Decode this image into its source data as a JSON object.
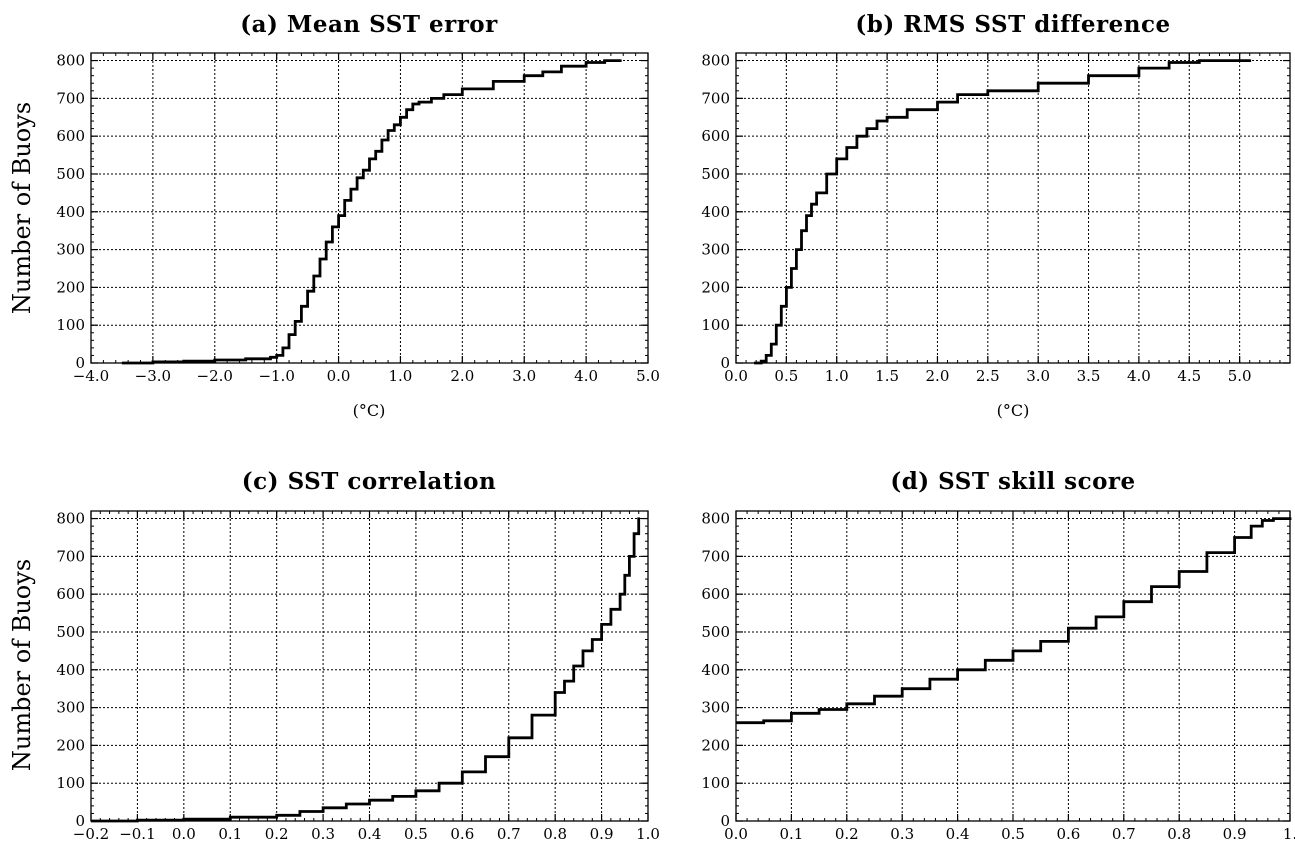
{
  "figure": {
    "y_axis_label": "Number of Buoys",
    "unit_label": "(°C)"
  },
  "chart_data": [
    {
      "type": "line",
      "title": "(a) Mean SST error",
      "xlabel": "(°C)",
      "ylabel": "Number of Buoys",
      "xlim": [
        -4.0,
        5.0
      ],
      "ylim": [
        0,
        820
      ],
      "x_ticks": [
        "−4.0",
        "−3.0",
        "−2.0",
        "−1.0",
        "0.0",
        "1.0",
        "2.0",
        "3.0",
        "4.0",
        "5.0"
      ],
      "y_ticks": [
        "0",
        "100",
        "200",
        "300",
        "400",
        "500",
        "600",
        "700",
        "800"
      ],
      "grid": true,
      "step": true,
      "series": [
        {
          "x": [
            -3.5,
            -3.0,
            -2.5,
            -2.0,
            -1.5,
            -1.1,
            -1.0,
            -0.9,
            -0.8,
            -0.7,
            -0.6,
            -0.5,
            -0.4,
            -0.3,
            -0.2,
            -0.1,
            0.0,
            0.1,
            0.2,
            0.3,
            0.4,
            0.5,
            0.6,
            0.7,
            0.8,
            0.9,
            1.0,
            1.1,
            1.2,
            1.3,
            1.5,
            1.7,
            2.0,
            2.5,
            3.0,
            3.3,
            3.6,
            4.0,
            4.3,
            4.55
          ],
          "y": [
            0,
            3,
            5,
            8,
            11,
            15,
            20,
            40,
            75,
            110,
            150,
            190,
            230,
            275,
            320,
            360,
            390,
            430,
            460,
            490,
            510,
            540,
            560,
            590,
            615,
            630,
            650,
            670,
            685,
            690,
            700,
            710,
            725,
            745,
            760,
            770,
            785,
            795,
            800,
            803
          ]
        }
      ]
    },
    {
      "type": "line",
      "title": "(b) RMS SST difference",
      "xlabel": "(°C)",
      "ylabel": "",
      "xlim": [
        0.0,
        5.5
      ],
      "ylim": [
        0,
        820
      ],
      "x_ticks": [
        "0.0",
        "0.5",
        "1.0",
        "1.5",
        "2.0",
        "2.5",
        "3.0",
        "3.5",
        "4.0",
        "4.5",
        "5.0"
      ],
      "y_ticks": [
        "0",
        "100",
        "200",
        "300",
        "400",
        "500",
        "600",
        "700",
        "800"
      ],
      "grid": true,
      "step": true,
      "series": [
        {
          "x": [
            0.18,
            0.25,
            0.3,
            0.35,
            0.4,
            0.45,
            0.5,
            0.55,
            0.6,
            0.65,
            0.7,
            0.75,
            0.8,
            0.9,
            1.0,
            1.1,
            1.2,
            1.3,
            1.4,
            1.5,
            1.7,
            2.0,
            2.2,
            2.5,
            3.0,
            3.5,
            4.0,
            4.3,
            4.6,
            5.1
          ],
          "y": [
            0,
            5,
            20,
            50,
            100,
            150,
            200,
            250,
            300,
            350,
            390,
            420,
            450,
            500,
            540,
            570,
            600,
            620,
            640,
            650,
            670,
            690,
            710,
            720,
            740,
            760,
            780,
            795,
            800,
            803
          ]
        }
      ]
    },
    {
      "type": "line",
      "title": "(c) SST correlation",
      "xlabel": "",
      "ylabel": "Number of Buoys",
      "xlim": [
        -0.2,
        1.0
      ],
      "ylim": [
        0,
        820
      ],
      "x_ticks": [
        "−0.2",
        "−0.1",
        "0.0",
        "0.1",
        "0.2",
        "0.3",
        "0.4",
        "0.5",
        "0.6",
        "0.7",
        "0.8",
        "0.9",
        "1.0"
      ],
      "y_ticks": [
        "0",
        "100",
        "200",
        "300",
        "400",
        "500",
        "600",
        "700",
        "800"
      ],
      "grid": true,
      "step": true,
      "series": [
        {
          "x": [
            -0.2,
            -0.1,
            0.0,
            0.1,
            0.2,
            0.25,
            0.3,
            0.35,
            0.4,
            0.45,
            0.5,
            0.55,
            0.6,
            0.65,
            0.7,
            0.75,
            0.8,
            0.82,
            0.84,
            0.86,
            0.88,
            0.9,
            0.92,
            0.94,
            0.95,
            0.96,
            0.97,
            0.98
          ],
          "y": [
            0,
            2,
            5,
            10,
            15,
            25,
            35,
            45,
            55,
            65,
            80,
            100,
            130,
            170,
            220,
            280,
            340,
            370,
            410,
            450,
            480,
            520,
            560,
            600,
            650,
            700,
            760,
            803
          ]
        }
      ]
    },
    {
      "type": "line",
      "title": "(d) SST skill score",
      "xlabel": "",
      "ylabel": "",
      "xlim": [
        0.0,
        1.0
      ],
      "ylim": [
        0,
        820
      ],
      "x_ticks": [
        "0.0",
        "0.1",
        "0.2",
        "0.3",
        "0.4",
        "0.5",
        "0.6",
        "0.7",
        "0.8",
        "0.9",
        "1."
      ],
      "y_ticks": [
        "0",
        "100",
        "200",
        "300",
        "400",
        "500",
        "600",
        "700",
        "800"
      ],
      "grid": true,
      "step": true,
      "series": [
        {
          "x": [
            0.0,
            0.05,
            0.1,
            0.15,
            0.2,
            0.25,
            0.3,
            0.35,
            0.4,
            0.45,
            0.5,
            0.55,
            0.6,
            0.65,
            0.7,
            0.75,
            0.8,
            0.85,
            0.9,
            0.93,
            0.95,
            0.97,
            1.0
          ],
          "y": [
            260,
            265,
            285,
            295,
            310,
            330,
            350,
            375,
            400,
            425,
            450,
            475,
            510,
            540,
            580,
            620,
            660,
            710,
            750,
            780,
            795,
            800,
            803
          ]
        }
      ]
    }
  ]
}
